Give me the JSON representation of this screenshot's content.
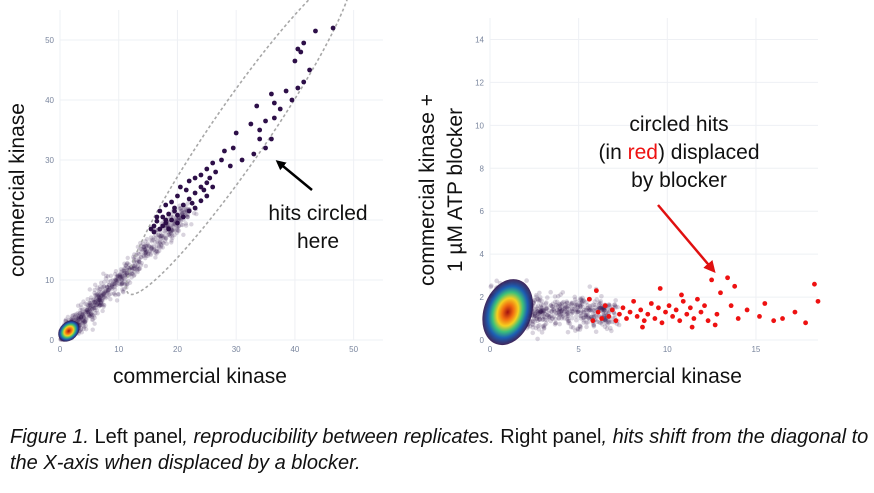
{
  "colors": {
    "point_dark": "#2d0f48",
    "hit_red": "#ee1111",
    "arrow_red": "#e01010",
    "tick_text": "#7a869e",
    "grid": "#eef0f4",
    "ellipse": "#a8a8a8"
  },
  "chart_data": [
    {
      "type": "scatter",
      "title": "",
      "xlabel": "commercial kinase",
      "ylabel": "commercial kinase",
      "xlim": [
        0,
        55
      ],
      "ylim": [
        0,
        55
      ],
      "xticks": [
        0,
        10,
        20,
        30,
        40,
        50
      ],
      "yticks": [
        0,
        10,
        20,
        30,
        40,
        50
      ],
      "annotation": [
        "hits circled",
        "here"
      ],
      "density_center": [
        1.5,
        1.5
      ],
      "series": [
        {
          "name": "hits",
          "color": "#2d0f48",
          "points": [
            [
              46.5,
              52
            ],
            [
              43.5,
              51.5
            ],
            [
              41.5,
              49.5
            ],
            [
              40.5,
              48.5
            ],
            [
              41,
              48
            ],
            [
              40,
              46.5
            ],
            [
              42.5,
              45
            ],
            [
              41.5,
              43
            ],
            [
              40.5,
              42
            ],
            [
              38.5,
              41.5
            ],
            [
              36,
              41
            ],
            [
              39.5,
              40
            ],
            [
              36.5,
              39.5
            ],
            [
              33.5,
              39
            ],
            [
              37.5,
              38.5
            ],
            [
              36.5,
              37
            ],
            [
              35,
              36.5
            ],
            [
              32.5,
              36
            ],
            [
              34,
              35
            ],
            [
              34,
              33.5
            ],
            [
              36,
              33.5
            ],
            [
              35,
              32
            ],
            [
              30,
              34.5
            ],
            [
              33,
              31
            ],
            [
              29.5,
              32
            ],
            [
              28,
              31.5
            ],
            [
              31,
              30
            ],
            [
              27.5,
              30
            ],
            [
              26,
              29.5
            ],
            [
              29,
              29
            ],
            [
              25,
              28.5
            ],
            [
              24,
              27.5
            ],
            [
              25.5,
              27
            ],
            [
              23,
              27
            ],
            [
              25,
              26.2
            ],
            [
              22,
              26.5
            ],
            [
              26,
              25.5
            ],
            [
              24.5,
              25
            ],
            [
              23,
              24.5
            ],
            [
              21.5,
              25
            ],
            [
              25,
              24
            ],
            [
              22,
              23.5
            ],
            [
              24,
              23.2
            ],
            [
              20,
              24
            ],
            [
              21,
              22.5
            ],
            [
              23,
              22
            ],
            [
              19.5,
              22
            ],
            [
              22,
              21.5
            ],
            [
              18.5,
              21
            ],
            [
              20,
              20.8
            ],
            [
              21,
              20.5
            ],
            [
              17.5,
              20.5
            ],
            [
              19,
              20
            ],
            [
              16.5,
              19.8
            ],
            [
              18,
              19.5
            ],
            [
              20,
              19.5
            ],
            [
              16,
              19
            ],
            [
              17.5,
              19
            ],
            [
              15.5,
              18.5
            ],
            [
              17,
              18.5
            ],
            [
              18.5,
              18.5
            ],
            [
              16,
              18
            ],
            [
              17,
              21.5
            ],
            [
              18,
              22.5
            ],
            [
              19,
              23
            ],
            [
              20.5,
              25.5
            ],
            [
              16.5,
              20.5
            ],
            [
              19.5,
              21.5
            ],
            [
              22.5,
              22.8
            ],
            [
              18,
              20
            ],
            [
              24,
              25.5
            ],
            [
              26.5,
              28
            ]
          ]
        },
        {
          "name": "background",
          "color": "#2d0f48",
          "density": "diagonal",
          "xrange": [
            0,
            22
          ]
        }
      ]
    },
    {
      "type": "scatter",
      "title": "",
      "xlabel": "commercial kinase",
      "ylabel": [
        "commercial kinase +",
        "1 µM ATP blocker"
      ],
      "xlim": [
        0,
        18.5
      ],
      "ylim": [
        0,
        15
      ],
      "xticks": [
        0,
        5,
        10,
        15
      ],
      "yticks": [
        0,
        2,
        4,
        6,
        8,
        10,
        12,
        14
      ],
      "annotation": [
        "circled hits",
        "(in ",
        "red",
        ") displaced",
        "by blocker"
      ],
      "density_center": [
        1.0,
        1.3
      ],
      "series": [
        {
          "name": "displaced hits",
          "color": "#ee1111",
          "points": [
            [
              18.3,
              2.6
            ],
            [
              18.5,
              1.8
            ],
            [
              17.8,
              0.8
            ],
            [
              17.2,
              1.3
            ],
            [
              16.5,
              1.0
            ],
            [
              15.5,
              1.7
            ],
            [
              15.2,
              1.1
            ],
            [
              14.5,
              1.4
            ],
            [
              14,
              1.0
            ],
            [
              13.8,
              2.5
            ],
            [
              13.6,
              1.6
            ],
            [
              13.4,
              2.9
            ],
            [
              13.0,
              2.2
            ],
            [
              12.8,
              1.2
            ],
            [
              12.5,
              2.8
            ],
            [
              12.3,
              0.9
            ],
            [
              12.1,
              1.6
            ],
            [
              11.9,
              1.3
            ],
            [
              11.7,
              1.9
            ],
            [
              11.5,
              1.0
            ],
            [
              11.3,
              1.5
            ],
            [
              11.1,
              1.2
            ],
            [
              10.9,
              1.8
            ],
            [
              10.7,
              0.9
            ],
            [
              10.5,
              1.4
            ],
            [
              10.3,
              1.1
            ],
            [
              10.1,
              1.6
            ],
            [
              9.9,
              1.3
            ],
            [
              9.7,
              0.8
            ],
            [
              9.5,
              1.5
            ],
            [
              9.3,
              1.0
            ],
            [
              9.1,
              1.7
            ],
            [
              8.9,
              1.2
            ],
            [
              8.7,
              0.9
            ],
            [
              8.5,
              1.4
            ],
            [
              8.3,
              1.1
            ],
            [
              8.1,
              1.8
            ],
            [
              7.9,
              1.3
            ],
            [
              7.7,
              1.0
            ],
            [
              7.5,
              1.5
            ],
            [
              7.3,
              1.2
            ],
            [
              7.1,
              0.9
            ],
            [
              6.9,
              1.4
            ],
            [
              6.7,
              1.1
            ],
            [
              6.5,
              1.6
            ],
            [
              6.3,
              1.0
            ],
            [
              6.1,
              1.3
            ],
            [
              5.8,
              0.9
            ],
            [
              6.0,
              2.3
            ],
            [
              5.6,
              1.9
            ],
            [
              10.8,
              2.1
            ],
            [
              9.6,
              2.4
            ],
            [
              11.4,
              0.6
            ],
            [
              8.6,
              0.6
            ],
            [
              12.7,
              0.7
            ],
            [
              16.0,
              0.9
            ]
          ]
        },
        {
          "name": "background",
          "color": "#2d0f48",
          "density": "horizontal",
          "xrange": [
            0,
            7
          ]
        }
      ]
    }
  ],
  "caption": {
    "figure_label": "Figure 1.",
    "left_label": " Left panel",
    "left_text": ", reproducibility between replicates.",
    "right_label": " Right panel",
    "right_text": ", hits shift from the diagonal to the X-axis when displaced by a blocker."
  }
}
